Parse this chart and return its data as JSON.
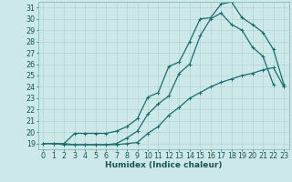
{
  "xlabel": "Humidex (Indice chaleur)",
  "xlim": [
    -0.5,
    23.5
  ],
  "ylim": [
    18.5,
    31.5
  ],
  "xticks": [
    0,
    1,
    2,
    3,
    4,
    5,
    6,
    7,
    8,
    9,
    10,
    11,
    12,
    13,
    14,
    15,
    16,
    17,
    18,
    19,
    20,
    21,
    22,
    23
  ],
  "yticks": [
    19,
    20,
    21,
    22,
    23,
    24,
    25,
    26,
    27,
    28,
    29,
    30,
    31
  ],
  "bg_color": "#cde8e8",
  "grid_color": "#aecece",
  "line_color": "#1a6e6e",
  "line1_x": [
    0,
    1,
    2,
    3,
    4,
    5,
    6,
    7,
    8,
    9,
    10,
    11,
    12,
    13,
    14,
    15,
    16,
    17,
    18,
    19,
    20,
    21,
    22,
    23
  ],
  "line1_y": [
    19.0,
    19.0,
    19.0,
    18.9,
    18.9,
    18.9,
    18.9,
    18.9,
    19.0,
    19.1,
    19.9,
    20.5,
    21.5,
    22.2,
    23.0,
    23.5,
    24.0,
    24.4,
    24.7,
    25.0,
    25.2,
    25.5,
    25.7,
    24.0
  ],
  "line2_x": [
    0,
    1,
    2,
    3,
    4,
    5,
    6,
    7,
    8,
    9,
    10,
    11,
    12,
    13,
    14,
    15,
    16,
    17,
    18,
    19,
    20,
    21,
    22
  ],
  "line2_y": [
    19.0,
    19.0,
    18.9,
    18.9,
    18.9,
    18.9,
    18.9,
    19.0,
    19.5,
    20.1,
    21.6,
    22.5,
    23.2,
    25.2,
    26.0,
    28.5,
    30.0,
    30.5,
    29.5,
    29.0,
    27.5,
    26.7,
    24.2
  ],
  "line3_x": [
    2,
    3,
    4,
    5,
    6,
    7,
    8,
    9,
    10,
    11,
    12,
    13,
    14,
    15,
    16,
    17,
    18,
    19,
    20,
    21,
    22,
    23
  ],
  "line3_y": [
    19.0,
    19.9,
    19.9,
    19.9,
    19.9,
    20.1,
    20.5,
    21.2,
    23.1,
    23.5,
    25.8,
    26.2,
    28.0,
    30.0,
    30.1,
    31.3,
    31.5,
    30.1,
    29.5,
    28.8,
    27.3,
    24.2
  ],
  "font_size_label": 6.5,
  "font_size_tick": 5.8,
  "marker": "+",
  "marker_size": 2.5,
  "lw": 0.9
}
